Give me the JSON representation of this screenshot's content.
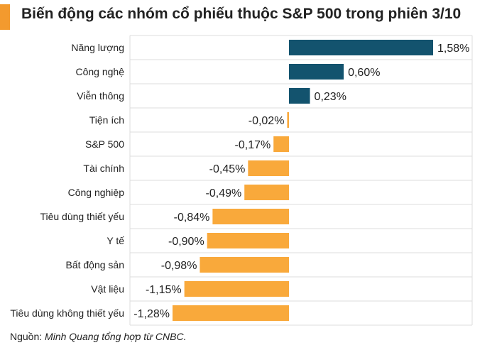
{
  "title": "Biến động các nhóm cổ phiếu thuộc S&P 500 trong phiên 3/10",
  "source_prefix": "Nguồn:",
  "source_text": "Minh Quang tổng hợp từ CNBC.",
  "colors": {
    "positive": "#13536e",
    "negative": "#f9a93b",
    "accent": "#f39a2e",
    "row_border": "#dcdcdc"
  },
  "chart_data": {
    "type": "bar",
    "orientation": "horizontal",
    "categories": [
      "Năng lượng",
      "Công nghệ",
      "Viễn thông",
      "Tiện ích",
      "S&P 500",
      "Tài chính",
      "Công nghiệp",
      "Tiêu dùng thiết yếu",
      "Y tế",
      "Bất động sản",
      "Vật liệu",
      "Tiêu dùng không thiết yếu"
    ],
    "values": [
      1.58,
      0.6,
      0.23,
      -0.02,
      -0.17,
      -0.45,
      -0.49,
      -0.84,
      -0.9,
      -0.98,
      -1.15,
      -1.28
    ],
    "labels": [
      "1,58%",
      "0,60%",
      "0,23%",
      "-0,02%",
      "-0,17%",
      "-0,45%",
      "-0,49%",
      "-0,84%",
      "-0,90%",
      "-0,98%",
      "-1,15%",
      "-1,28%"
    ],
    "unit": "%",
    "xlim": [
      -1.28,
      1.58
    ]
  }
}
